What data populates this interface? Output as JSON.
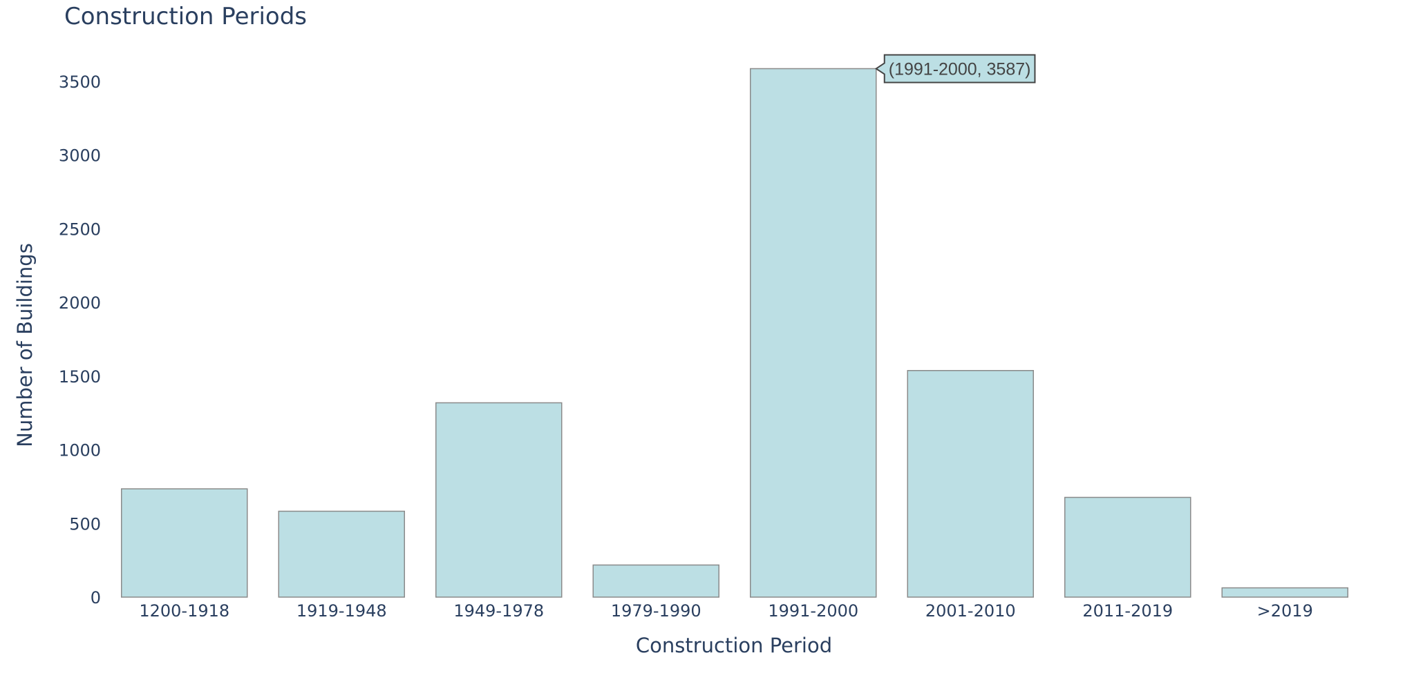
{
  "chart_data": {
    "type": "bar",
    "title": "Construction Periods",
    "xlabel": "Construction Period",
    "ylabel": "Number of Buildings",
    "categories": [
      "1200-1918",
      "1919-1948",
      "1949-1978",
      "1979-1990",
      "1991-2000",
      "2001-2010",
      "2011-2019",
      ">2019"
    ],
    "values": [
      735,
      583,
      1319,
      218,
      3587,
      1538,
      677,
      63
    ],
    "ylim": [
      0,
      3800
    ],
    "yticks": [
      0,
      500,
      1000,
      1500,
      2000,
      2500,
      3000,
      3500
    ],
    "grid": false,
    "bar_color": "#bcdfe4",
    "bar_outline_color": "#8a8a8a",
    "text_color": "#2a3f5f",
    "hover_label": {
      "category_index": 4,
      "text": "(1991-2000, 3587)"
    }
  }
}
